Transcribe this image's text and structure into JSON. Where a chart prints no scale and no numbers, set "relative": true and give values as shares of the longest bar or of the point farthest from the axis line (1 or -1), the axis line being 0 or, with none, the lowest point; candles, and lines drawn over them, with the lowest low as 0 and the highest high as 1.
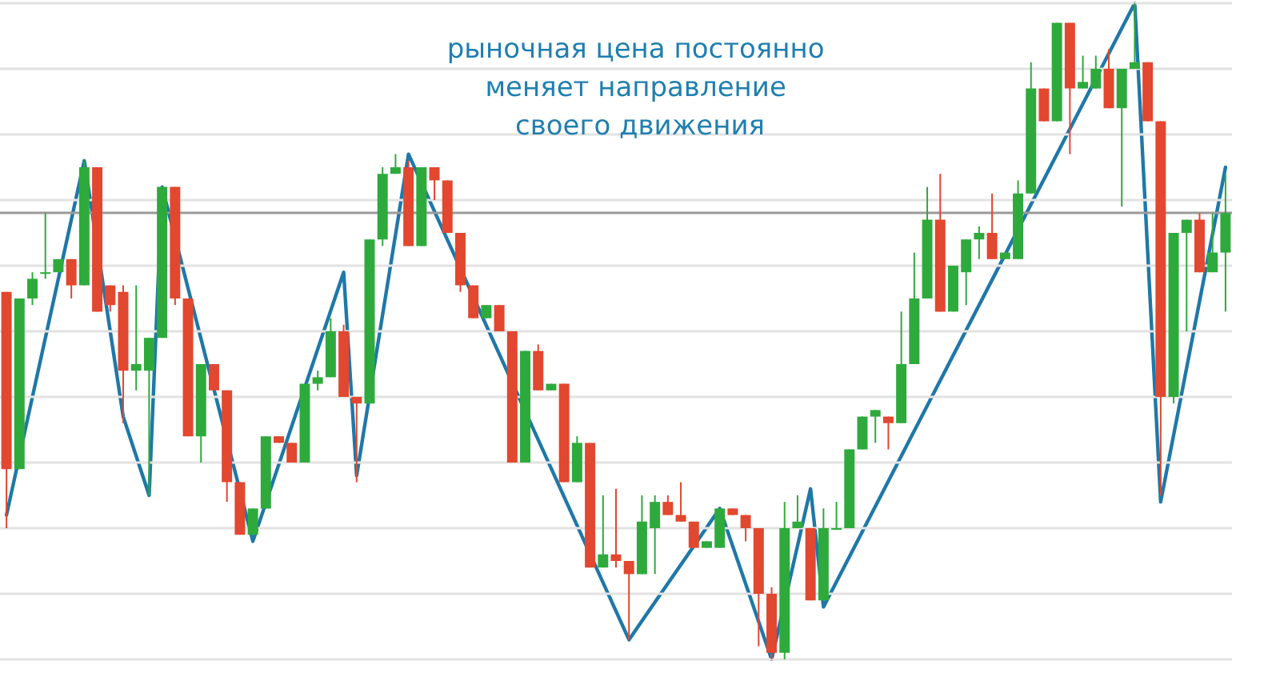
{
  "chart_data": [
    {
      "type": "candlestick",
      "title": "рыночная цена постоянно меняет направление своего движения",
      "relative": true,
      "grid": "y",
      "colors": [
        "#e2472f",
        "#2eaa3c",
        "#2eaa3c",
        "#2eaa3c",
        "#2eaa3c",
        "#e2472f",
        "#2eaa3c",
        "#e2472f",
        "#e2472f",
        "#e2472f",
        "#2eaa3c",
        "#2eaa3c",
        "#2eaa3c",
        "#e2472f",
        "#e2472f",
        "#2eaa3c",
        "#e2472f",
        "#e2472f",
        "#e2472f",
        "#2eaa3c",
        "#2eaa3c",
        "#e2472f",
        "#e2472f",
        "#2eaa3c",
        "#2eaa3c",
        "#2eaa3c",
        "#e2472f",
        "#e2472f",
        "#2eaa3c",
        "#2eaa3c",
        "#2eaa3c",
        "#e2472f",
        "#2eaa3c",
        "#e2472f",
        "#e2472f",
        "#e2472f",
        "#e2472f",
        "#2eaa3c",
        "#e2472f",
        "#e2472f",
        "#2eaa3c",
        "#e2472f",
        "#2eaa3c",
        "#e2472f",
        "#2eaa3c",
        "#e2472f",
        "#2eaa3c",
        "#e2472f",
        "#e2472f",
        "#2eaa3c",
        "#2eaa3c",
        "#e2472f",
        "#e2472f",
        "#e2472f",
        "#2eaa3c",
        "#2eaa3c",
        "#e2472f",
        "#e2472f",
        "#e2472f",
        "#e2472f",
        "#2eaa3c",
        "#2eaa3c",
        "#e2472f",
        "#2eaa3c",
        "#2eaa3c",
        "#2eaa3c",
        "#2eaa3c",
        "#2eaa3c",
        "#e2472f",
        "#2eaa3c",
        "#2eaa3c",
        "#2eaa3c",
        "#e2472f",
        "#2eaa3c",
        "#2eaa3c",
        "#2eaa3c",
        "#e2472f",
        "#2eaa3c",
        "#2eaa3c",
        "#2eaa3c",
        "#e2472f",
        "#2eaa3c",
        "#e2472f",
        "#2eaa3c",
        "#2eaa3c",
        "#e2472f",
        "#2eaa3c",
        "#2eaa3c",
        "#e2472f",
        "#e2472f",
        "#2eaa3c",
        "#2eaa3c",
        "#e2472f",
        "#2eaa3c",
        "#2eaa3c"
      ],
      "categories": [
        null,
        null,
        null,
        null,
        null,
        null,
        null,
        null,
        null,
        null,
        null,
        null,
        null,
        null,
        null,
        null,
        null,
        null,
        null,
        null,
        null,
        null,
        null,
        null,
        null,
        null,
        null,
        null,
        null,
        null,
        null,
        null,
        null,
        null,
        null,
        null,
        null,
        null,
        null,
        null,
        null,
        null,
        null,
        null,
        null,
        null,
        null,
        null,
        null,
        null,
        null,
        null,
        null,
        null,
        null,
        null,
        null,
        null,
        null,
        null,
        null,
        null,
        null,
        null,
        null,
        null,
        null,
        null,
        null,
        null,
        null,
        null,
        null,
        null,
        null,
        null,
        null,
        null,
        null,
        null,
        null,
        null,
        null,
        null,
        null,
        null,
        null,
        null,
        null,
        null,
        null,
        null,
        null,
        null,
        null
      ],
      "ohlc": [
        [
          0.56,
          0.56,
          0.2,
          0.29
        ],
        [
          0.29,
          0.55,
          0.29,
          0.55
        ],
        [
          0.55,
          0.59,
          0.54,
          0.58
        ],
        [
          0.59,
          0.68,
          0.58,
          0.59
        ],
        [
          0.59,
          0.61,
          0.59,
          0.61
        ],
        [
          0.61,
          0.61,
          0.55,
          0.57
        ],
        [
          0.57,
          0.76,
          0.57,
          0.75
        ],
        [
          0.75,
          0.75,
          0.53,
          0.53
        ],
        [
          0.57,
          0.57,
          0.53,
          0.54
        ],
        [
          0.56,
          0.57,
          0.36,
          0.44
        ],
        [
          0.44,
          0.57,
          0.41,
          0.45
        ],
        [
          0.44,
          0.49,
          0.25,
          0.49
        ],
        [
          0.49,
          0.72,
          0.49,
          0.72
        ],
        [
          0.72,
          0.72,
          0.54,
          0.55
        ],
        [
          0.55,
          0.55,
          0.34,
          0.34
        ],
        [
          0.34,
          0.45,
          0.3,
          0.45
        ],
        [
          0.45,
          0.45,
          0.41,
          0.41
        ],
        [
          0.41,
          0.41,
          0.24,
          0.27
        ],
        [
          0.27,
          0.27,
          0.19,
          0.19
        ],
        [
          0.19,
          0.23,
          0.19,
          0.23
        ],
        [
          0.23,
          0.34,
          0.23,
          0.34
        ],
        [
          0.34,
          0.34,
          0.33,
          0.33
        ],
        [
          0.33,
          0.33,
          0.3,
          0.3
        ],
        [
          0.3,
          0.42,
          0.3,
          0.42
        ],
        [
          0.42,
          0.44,
          0.41,
          0.43
        ],
        [
          0.43,
          0.52,
          0.43,
          0.5
        ],
        [
          0.5,
          0.51,
          0.4,
          0.4
        ],
        [
          0.4,
          0.4,
          0.27,
          0.39
        ],
        [
          0.39,
          0.64,
          0.39,
          0.64
        ],
        [
          0.64,
          0.75,
          0.63,
          0.74
        ],
        [
          0.74,
          0.77,
          0.74,
          0.75
        ],
        [
          0.75,
          0.76,
          0.63,
          0.63
        ],
        [
          0.63,
          0.75,
          0.63,
          0.75
        ],
        [
          0.75,
          0.75,
          0.7,
          0.73
        ],
        [
          0.73,
          0.73,
          0.65,
          0.65
        ],
        [
          0.65,
          0.65,
          0.56,
          0.57
        ],
        [
          0.57,
          0.57,
          0.52,
          0.52
        ],
        [
          0.52,
          0.54,
          0.52,
          0.54
        ],
        [
          0.54,
          0.54,
          0.5,
          0.5
        ],
        [
          0.5,
          0.5,
          0.3,
          0.3
        ],
        [
          0.3,
          0.47,
          0.3,
          0.47
        ],
        [
          0.47,
          0.48,
          0.41,
          0.41
        ],
        [
          0.41,
          0.42,
          0.41,
          0.42
        ],
        [
          0.42,
          0.42,
          0.27,
          0.27
        ],
        [
          0.27,
          0.34,
          0.27,
          0.33
        ],
        [
          0.33,
          0.33,
          0.14,
          0.14
        ],
        [
          0.14,
          0.25,
          0.14,
          0.16
        ],
        [
          0.16,
          0.26,
          0.14,
          0.15
        ],
        [
          0.15,
          0.15,
          0.03,
          0.13
        ],
        [
          0.13,
          0.25,
          0.13,
          0.21
        ],
        [
          0.2,
          0.25,
          0.13,
          0.24
        ],
        [
          0.24,
          0.25,
          0.22,
          0.22
        ],
        [
          0.22,
          0.27,
          0.21,
          0.21
        ],
        [
          0.21,
          0.21,
          0.17,
          0.17
        ],
        [
          0.17,
          0.18,
          0.17,
          0.18
        ],
        [
          0.17,
          0.23,
          0.17,
          0.23
        ],
        [
          0.23,
          0.23,
          0.22,
          0.22
        ],
        [
          0.22,
          0.22,
          0.18,
          0.2
        ],
        [
          0.2,
          0.2,
          0.02,
          0.1
        ],
        [
          0.1,
          0.11,
          0.0,
          0.01
        ],
        [
          0.01,
          0.24,
          0.0,
          0.2
        ],
        [
          0.2,
          0.25,
          0.2,
          0.21
        ],
        [
          0.2,
          0.2,
          0.09,
          0.09
        ],
        [
          0.09,
          0.23,
          0.09,
          0.2
        ],
        [
          0.2,
          0.24,
          0.2,
          0.2
        ],
        [
          0.2,
          0.32,
          0.2,
          0.32
        ],
        [
          0.32,
          0.37,
          0.32,
          0.37
        ],
        [
          0.37,
          0.38,
          0.33,
          0.38
        ],
        [
          0.37,
          0.37,
          0.32,
          0.36
        ],
        [
          0.36,
          0.53,
          0.36,
          0.45
        ],
        [
          0.45,
          0.62,
          0.45,
          0.55
        ],
        [
          0.55,
          0.72,
          0.55,
          0.67
        ],
        [
          0.67,
          0.74,
          0.53,
          0.53
        ],
        [
          0.53,
          0.6,
          0.53,
          0.6
        ],
        [
          0.59,
          0.64,
          0.54,
          0.64
        ],
        [
          0.64,
          0.66,
          0.61,
          0.65
        ],
        [
          0.65,
          0.71,
          0.61,
          0.61
        ],
        [
          0.61,
          0.62,
          0.61,
          0.62
        ],
        [
          0.61,
          0.73,
          0.61,
          0.71
        ],
        [
          0.71,
          0.91,
          0.71,
          0.87
        ],
        [
          0.87,
          0.87,
          0.82,
          0.82
        ],
        [
          0.82,
          0.97,
          0.82,
          0.97
        ],
        [
          0.97,
          0.97,
          0.77,
          0.87
        ],
        [
          0.87,
          0.92,
          0.87,
          0.88
        ],
        [
          0.87,
          0.92,
          0.87,
          0.9
        ],
        [
          0.9,
          0.93,
          0.84,
          0.84
        ],
        [
          0.84,
          0.9,
          0.69,
          0.9
        ],
        [
          0.9,
          1.0,
          0.9,
          0.91
        ],
        [
          0.91,
          0.91,
          0.82,
          0.82
        ],
        [
          0.82,
          0.82,
          0.25,
          0.4
        ],
        [
          0.4,
          0.65,
          0.39,
          0.65
        ],
        [
          0.65,
          0.67,
          0.5,
          0.67
        ],
        [
          0.67,
          0.68,
          0.59,
          0.59
        ],
        [
          0.59,
          0.68,
          0.59,
          0.62
        ],
        [
          0.62,
          0.74,
          0.53,
          0.68
        ]
      ],
      "ref_lines": [
        {
          "axis": "y",
          "value": 0.68,
          "color": "#9a9a9a"
        }
      ]
    },
    {
      "type": "line",
      "relative": true,
      "color": "#1f78a8",
      "line_style": "solid",
      "marker": "none",
      "categories": [
        null,
        null,
        null,
        null,
        null,
        null,
        null,
        null,
        null,
        null,
        null,
        null,
        null,
        null,
        null,
        null,
        null,
        null,
        null,
        null,
        null,
        null,
        null,
        null,
        null,
        null,
        null,
        null,
        null,
        null,
        null,
        null,
        null,
        null,
        null,
        null,
        null,
        null,
        null,
        null,
        null,
        null,
        null,
        null,
        null,
        null,
        null,
        null,
        null,
        null,
        null,
        null,
        null,
        null,
        null,
        null,
        null,
        null,
        null,
        null,
        null,
        null,
        null,
        null,
        null,
        null,
        null,
        null,
        null,
        null,
        null,
        null,
        null,
        null,
        null,
        null,
        null,
        null,
        null,
        null,
        null,
        null,
        null,
        null,
        null,
        null,
        null,
        null,
        null,
        null,
        null,
        null,
        null,
        null,
        null
      ],
      "values": [
        0.22,
        null,
        null,
        null,
        null,
        null,
        0.76,
        null,
        null,
        0.37,
        null,
        0.25,
        0.72,
        null,
        null,
        null,
        null,
        null,
        null,
        0.18,
        null,
        null,
        null,
        null,
        null,
        null,
        0.59,
        0.28,
        null,
        null,
        null,
        0.77,
        null,
        null,
        null,
        null,
        null,
        null,
        null,
        null,
        null,
        null,
        null,
        null,
        null,
        null,
        null,
        null,
        0.03,
        null,
        null,
        null,
        null,
        null,
        null,
        0.23,
        null,
        null,
        null,
        0.0,
        null,
        null,
        0.26,
        0.08,
        null,
        null,
        null,
        null,
        null,
        null,
        null,
        null,
        null,
        null,
        null,
        null,
        null,
        null,
        null,
        null,
        null,
        null,
        null,
        null,
        null,
        null,
        null,
        1.0,
        null,
        0.24,
        null,
        null,
        null,
        null,
        0.75
      ]
    }
  ]
}
